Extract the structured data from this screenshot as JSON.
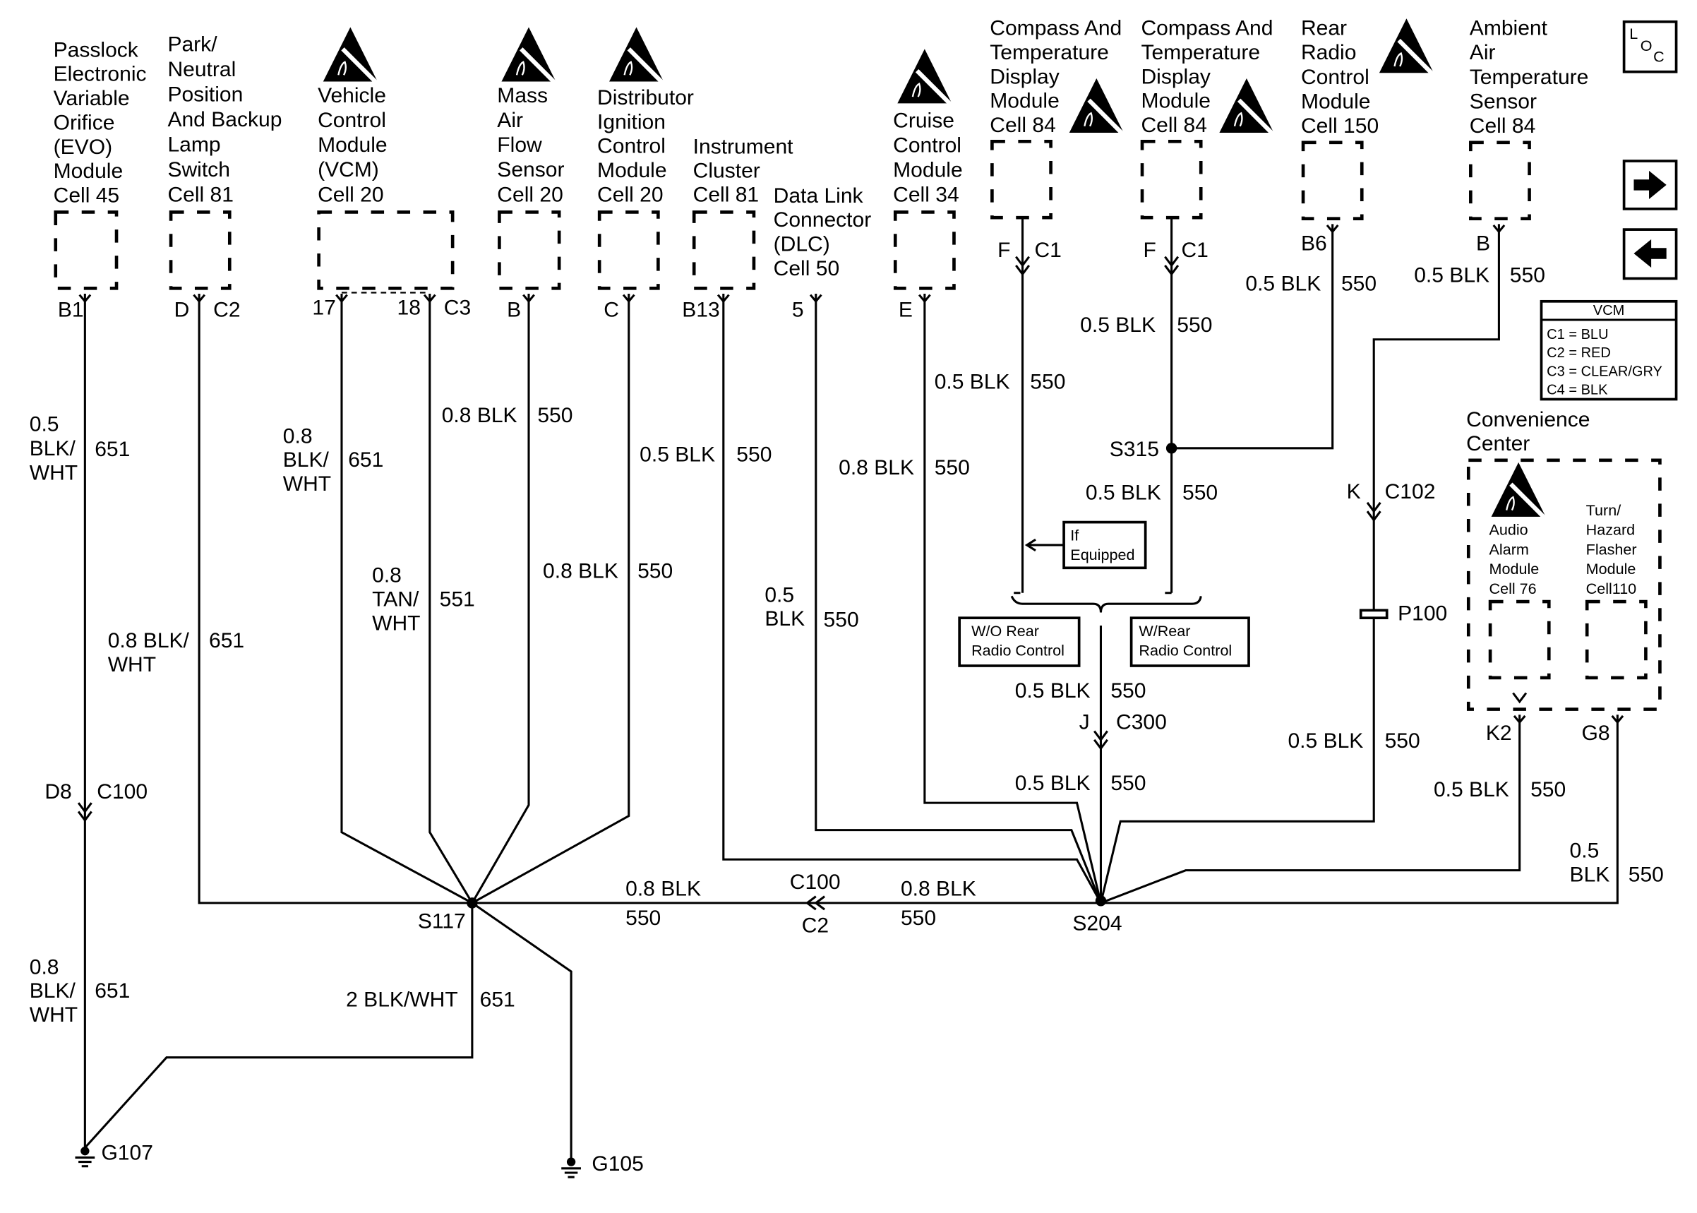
{
  "diagram": {
    "components": [
      {
        "lines": [
          "Passlock",
          "Electronic",
          "Variable",
          "Orifice",
          "(EVO)",
          "Module",
          "Cell 45"
        ]
      },
      {
        "lines": [
          "Park/",
          "Neutral",
          "Position",
          "And Backup",
          "Lamp",
          "Switch",
          "Cell 81"
        ]
      },
      {
        "lines": [
          "Vehicle",
          "Control",
          "Module",
          "(VCM)",
          "Cell 20"
        ]
      },
      {
        "lines": [
          "Mass",
          "Air",
          "Flow",
          "Sensor",
          "Cell 20"
        ]
      },
      {
        "lines": [
          "Distributor",
          "Ignition",
          "Control",
          "Module",
          "Cell 20"
        ]
      },
      {
        "lines": [
          "Instrument",
          "Cluster",
          "Cell 81"
        ]
      },
      {
        "lines": [
          "Data Link",
          "Connector",
          "(DLC)",
          "Cell 50"
        ]
      },
      {
        "lines": [
          "Cruise",
          "Control",
          "Module",
          "Cell 34"
        ]
      },
      {
        "lines": [
          "Compass And",
          "Temperature",
          "Display",
          "Module",
          "Cell 84"
        ]
      },
      {
        "lines": [
          "Compass And",
          "Temperature",
          "Display",
          "Module",
          "Cell 84"
        ]
      },
      {
        "lines": [
          "Rear",
          "Radio",
          "Control",
          "Module",
          "Cell 150"
        ]
      },
      {
        "lines": [
          "Ambient",
          "Air",
          "Temperature",
          "Sensor",
          "Cell 84"
        ]
      },
      {
        "lines": [
          "Convenience",
          "Center"
        ]
      },
      {
        "lines": [
          "Audio",
          "Alarm",
          "Module",
          "Cell 76"
        ]
      },
      {
        "lines": [
          "Turn/",
          "Hazard",
          "Flasher",
          "Module",
          "Cell110"
        ]
      }
    ],
    "wire_labels": [
      {
        "lines": [
          "0.5",
          "BLK/",
          "WHT"
        ],
        "circuit": "651"
      },
      {
        "lines": [
          "0.8 BLK/",
          "WHT"
        ],
        "circuit": "651"
      },
      {
        "lines": [
          "0.8",
          "BLK/",
          "WHT"
        ],
        "circuit": "651"
      },
      {
        "lines": [
          "0.8",
          "TAN/",
          "WHT"
        ],
        "circuit": "551"
      },
      {
        "lines": [
          "0.8 BLK"
        ],
        "circuit": "550"
      },
      {
        "lines": [
          "0.8 BLK"
        ],
        "circuit": "550"
      },
      {
        "lines": [
          "0.5 BLK"
        ],
        "circuit": "550"
      },
      {
        "lines": [
          "0.5",
          "BLK"
        ],
        "circuit": "550"
      },
      {
        "lines": [
          "0.8 BLK"
        ],
        "circuit": "550"
      },
      {
        "lines": [
          "0.5 BLK"
        ],
        "circuit": "550"
      },
      {
        "lines": [
          "0.5 BLK"
        ],
        "circuit": "550"
      },
      {
        "lines": [
          "0.5 BLK"
        ],
        "circuit": "550"
      },
      {
        "lines": [
          "0.5 BLK"
        ],
        "circuit": "550"
      },
      {
        "lines": [
          "0.5 BLK"
        ],
        "circuit": "550"
      },
      {
        "lines": [
          "0.5 BLK"
        ],
        "circuit": "550"
      },
      {
        "lines": [
          "0.5 BLK"
        ],
        "circuit": "550"
      },
      {
        "lines": [
          "0.5 BLK"
        ],
        "circuit": "550"
      },
      {
        "lines": [
          "0.5 BLK"
        ],
        "circuit": "550"
      },
      {
        "lines": [
          "0.5",
          "BLK"
        ],
        "circuit": "550"
      },
      {
        "lines": [
          "2 BLK/WHT"
        ],
        "circuit": "651"
      },
      {
        "lines": [
          "0.8 BLK"
        ],
        "circuit": "550"
      },
      {
        "lines": [
          "0.8 BLK"
        ],
        "circuit": "550"
      },
      {
        "lines": [
          "0.8",
          "BLK/",
          "WHT"
        ],
        "circuit": "651"
      }
    ],
    "connectors": [
      "B1",
      "D",
      "C2",
      "17",
      "18",
      "C3",
      "B",
      "C",
      "B13",
      "5",
      "E",
      "F",
      "C1",
      "F",
      "C1",
      "B6",
      "B",
      "D8",
      "C100",
      "S117",
      "S204",
      "C100",
      "C2",
      "S315",
      "K",
      "C102",
      "P100",
      "J",
      "C300",
      "K2",
      "G8",
      "G107",
      "G105"
    ],
    "notes": {
      "if_equipped": [
        "If",
        "Equipped"
      ],
      "without_rear_radio": [
        "W/O Rear",
        "Radio Control"
      ],
      "with_rear_radio": [
        "W/Rear",
        "Radio Control"
      ]
    },
    "vcm_legend": {
      "title": "VCM",
      "entries": [
        "C1 = BLU",
        "C2 = RED",
        "C3 = CLEAR/GRY",
        "C4 = BLK"
      ]
    },
    "icons": [
      "esd-sensitive-icon",
      "ground-icon",
      "loc-button",
      "next-arrow-icon",
      "previous-arrow-icon"
    ],
    "loc": [
      "L",
      "O",
      "C"
    ]
  }
}
